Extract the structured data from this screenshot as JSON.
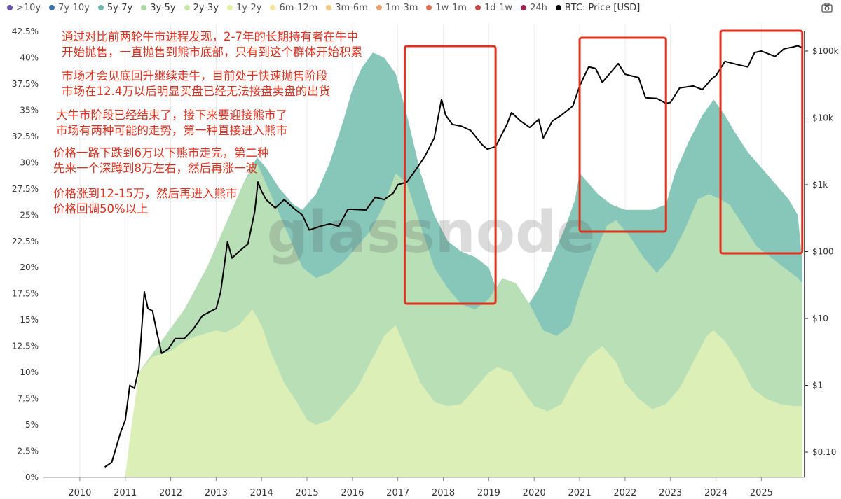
{
  "legend": [
    {
      "label": ">10y",
      "color": "#6c4fb3",
      "hidden": true
    },
    {
      "label": "7y-10y",
      "color": "#3b73a8",
      "hidden": true
    },
    {
      "label": "5y-7y",
      "color": "#6bb8b0",
      "hidden": false
    },
    {
      "label": "3y-5y",
      "color": "#a8d8a0",
      "hidden": false
    },
    {
      "label": "2y-3y",
      "color": "#c8e6a3",
      "hidden": false
    },
    {
      "label": "1y-2y",
      "color": "#e4efa0",
      "hidden": true
    },
    {
      "label": "6m-12m",
      "color": "#f3e59a",
      "hidden": true
    },
    {
      "label": "3m-6m",
      "color": "#f2c87a",
      "hidden": true
    },
    {
      "label": "1m-3m",
      "color": "#f0a066",
      "hidden": true
    },
    {
      "label": "1w-1m",
      "color": "#e46b50",
      "hidden": true
    },
    {
      "label": "1d-1w",
      "color": "#cf4545",
      "hidden": true
    },
    {
      "label": "24h",
      "color": "#a0234f",
      "hidden": true
    },
    {
      "label": "BTC: Price [USD]",
      "color": "#000000",
      "hidden": false
    }
  ],
  "icons": {
    "camera": "camera-icon"
  },
  "watermark": "glassnode",
  "annotations": [
    {
      "lines": [
        "通过对比前两轮牛市进程发现，2-7年的长期持有者在牛中",
        "开始抛售，一直抛售到熊市底部，只有到这个群体开始积累"
      ]
    },
    {
      "lines": [
        "市场才会见底回升继续走牛，目前处于快速抛售阶段",
        "市场在12.4万以后明显买盘已经无法接盘卖盘的出货"
      ]
    },
    {
      "lines": [
        "大牛市阶段已经结束了，接下来要迎接熊市了",
        "市场有两种可能的走势，第一种直接进入熊市"
      ]
    },
    {
      "lines": [
        "价格一路下跌到6万以下熊市走完，第二种",
        "先来一个深蹲到8万左右，然后再涨一波"
      ]
    },
    {
      "lines": [
        "价格涨到12-15万，然后再进入熊市",
        "价格回调50%以上"
      ]
    }
  ],
  "highlight_boxes": [
    {
      "from": 2017.15,
      "to": 2019.15
    },
    {
      "from": 2021.0,
      "to": 2022.9
    },
    {
      "from": 2024.1,
      "to": 2025.9
    }
  ],
  "chart_data": {
    "type": "area",
    "x_ticks": [
      "2010",
      "2011",
      "2012",
      "2013",
      "2014",
      "2015",
      "2016",
      "2017",
      "2018",
      "2019",
      "2020",
      "2021",
      "2022",
      "2023",
      "2024",
      "2025"
    ],
    "xlim": [
      2009.2,
      2025.95
    ],
    "y_left": {
      "ticks": [
        "0%",
        "2.5%",
        "5%",
        "7.5%",
        "10%",
        "12.5%",
        "15%",
        "17.5%",
        "20%",
        "22.5%",
        "25%",
        "27.5%",
        "30%",
        "32.5%",
        "35%",
        "37.5%",
        "40%",
        "42.5%"
      ],
      "ylim": [
        0,
        42.5
      ]
    },
    "y_right": {
      "scale": "log",
      "ticks": [
        "$0.10",
        "$1",
        "$10",
        "$100",
        "$1k",
        "$10k",
        "$100k"
      ],
      "ylim": [
        0.1,
        100000
      ]
    },
    "series": [
      {
        "name": "2y-3y",
        "type": "stacked-area",
        "axis": "left",
        "color": "#dcefb7",
        "points": [
          [
            2011.0,
            0
          ],
          [
            2011.08,
            3
          ],
          [
            2011.3,
            10
          ],
          [
            2011.6,
            11.5
          ],
          [
            2012.0,
            12
          ],
          [
            2012.3,
            13
          ],
          [
            2012.6,
            13.5
          ],
          [
            2013.0,
            14
          ],
          [
            2013.2,
            13.8
          ],
          [
            2013.5,
            14.5
          ],
          [
            2013.8,
            16
          ],
          [
            2014.0,
            14.5
          ],
          [
            2014.2,
            12
          ],
          [
            2014.5,
            9
          ],
          [
            2014.8,
            7
          ],
          [
            2015.0,
            5.5
          ],
          [
            2015.2,
            5
          ],
          [
            2015.5,
            5.5
          ],
          [
            2015.8,
            7
          ],
          [
            2016.1,
            8.5
          ],
          [
            2016.4,
            11
          ],
          [
            2016.7,
            13.5
          ],
          [
            2016.95,
            14.5
          ],
          [
            2017.2,
            12
          ],
          [
            2017.5,
            9
          ],
          [
            2017.8,
            7.2
          ],
          [
            2018.1,
            6.8
          ],
          [
            2018.4,
            7
          ],
          [
            2018.7,
            8.5
          ],
          [
            2019.0,
            10
          ],
          [
            2019.2,
            10.5
          ],
          [
            2019.5,
            10
          ],
          [
            2019.8,
            8
          ],
          [
            2020.0,
            6.8
          ],
          [
            2020.3,
            6.3
          ],
          [
            2020.6,
            7
          ],
          [
            2020.9,
            9.5
          ],
          [
            2021.2,
            11.5
          ],
          [
            2021.5,
            12.5
          ],
          [
            2021.8,
            11
          ],
          [
            2022.0,
            9
          ],
          [
            2022.3,
            7.5
          ],
          [
            2022.6,
            6.5
          ],
          [
            2022.9,
            7
          ],
          [
            2023.2,
            8.5
          ],
          [
            2023.5,
            11
          ],
          [
            2023.8,
            13.5
          ],
          [
            2023.95,
            14
          ],
          [
            2024.2,
            13
          ],
          [
            2024.5,
            11
          ],
          [
            2024.8,
            8.5
          ],
          [
            2025.1,
            7.5
          ],
          [
            2025.4,
            7
          ],
          [
            2025.7,
            6.8
          ],
          [
            2025.9,
            6.8
          ]
        ]
      },
      {
        "name": "3y-5y",
        "type": "stacked-area",
        "axis": "left",
        "color": "#b9dfb6",
        "points": [
          [
            2011.0,
            0
          ],
          [
            2011.1,
            3
          ],
          [
            2011.3,
            10
          ],
          [
            2011.8,
            13
          ],
          [
            2012.3,
            16
          ],
          [
            2012.8,
            20
          ],
          [
            2013.2,
            24
          ],
          [
            2013.6,
            28
          ],
          [
            2013.9,
            30
          ],
          [
            2014.1,
            28
          ],
          [
            2014.4,
            25
          ],
          [
            2014.7,
            22
          ],
          [
            2014.9,
            20
          ],
          [
            2015.2,
            19
          ],
          [
            2015.5,
            19.5
          ],
          [
            2015.8,
            20.5
          ],
          [
            2016.1,
            22
          ],
          [
            2016.4,
            23.5
          ],
          [
            2016.7,
            26
          ],
          [
            2016.95,
            29
          ],
          [
            2017.2,
            28
          ],
          [
            2017.5,
            24
          ],
          [
            2017.8,
            20
          ],
          [
            2018.1,
            18
          ],
          [
            2018.4,
            16.5
          ],
          [
            2018.7,
            16
          ],
          [
            2019.0,
            17
          ],
          [
            2019.3,
            19
          ],
          [
            2019.6,
            18.5
          ],
          [
            2019.9,
            16.5
          ],
          [
            2020.2,
            14
          ],
          [
            2020.5,
            13.5
          ],
          [
            2020.8,
            14.5
          ],
          [
            2021.0,
            17.5
          ],
          [
            2021.3,
            21
          ],
          [
            2021.6,
            24
          ],
          [
            2021.8,
            24.5
          ],
          [
            2022.1,
            23
          ],
          [
            2022.4,
            21
          ],
          [
            2022.7,
            19.5
          ],
          [
            2023.0,
            21
          ],
          [
            2023.3,
            23.5
          ],
          [
            2023.6,
            26.5
          ],
          [
            2023.85,
            27
          ],
          [
            2024.1,
            26.5
          ],
          [
            2024.3,
            26
          ],
          [
            2024.6,
            24
          ],
          [
            2024.9,
            22
          ],
          [
            2025.2,
            21
          ],
          [
            2025.5,
            20
          ],
          [
            2025.8,
            19
          ],
          [
            2025.9,
            18.5
          ]
        ]
      },
      {
        "name": "5y-7y",
        "type": "stacked-area",
        "axis": "left",
        "color": "#86c7b9",
        "points": [
          [
            2011.0,
            0
          ],
          [
            2011.1,
            3
          ],
          [
            2011.3,
            10
          ],
          [
            2011.8,
            13
          ],
          [
            2012.3,
            16
          ],
          [
            2012.8,
            20
          ],
          [
            2013.2,
            24
          ],
          [
            2013.6,
            28
          ],
          [
            2013.9,
            30.5
          ],
          [
            2014.1,
            29.5
          ],
          [
            2014.4,
            27.5
          ],
          [
            2014.7,
            26
          ],
          [
            2014.9,
            25.5
          ],
          [
            2015.2,
            27
          ],
          [
            2015.5,
            30
          ],
          [
            2015.8,
            34
          ],
          [
            2016.0,
            37
          ],
          [
            2016.2,
            39
          ],
          [
            2016.45,
            40.5
          ],
          [
            2016.7,
            40
          ],
          [
            2016.95,
            38.5
          ],
          [
            2017.2,
            34.5
          ],
          [
            2017.5,
            29
          ],
          [
            2017.8,
            25
          ],
          [
            2018.1,
            22.5
          ],
          [
            2018.4,
            21.5
          ],
          [
            2018.7,
            21
          ],
          [
            2019.0,
            20
          ],
          [
            2019.2,
            17.5
          ],
          [
            2019.5,
            16
          ],
          [
            2019.8,
            16
          ],
          [
            2020.1,
            18
          ],
          [
            2020.4,
            21
          ],
          [
            2020.7,
            24
          ],
          [
            2020.9,
            26.5
          ],
          [
            2021.0,
            29
          ],
          [
            2021.2,
            28
          ],
          [
            2021.4,
            27
          ],
          [
            2021.7,
            26
          ],
          [
            2022.0,
            25.5
          ],
          [
            2022.3,
            25.5
          ],
          [
            2022.6,
            25.5
          ],
          [
            2022.9,
            26
          ],
          [
            2023.1,
            29
          ],
          [
            2023.4,
            32
          ],
          [
            2023.7,
            34.5
          ],
          [
            2023.95,
            36
          ],
          [
            2024.2,
            34.5
          ],
          [
            2024.4,
            33
          ],
          [
            2024.7,
            31
          ],
          [
            2025.0,
            29.5
          ],
          [
            2025.3,
            28
          ],
          [
            2025.6,
            26.5
          ],
          [
            2025.8,
            25
          ],
          [
            2025.9,
            20.5
          ]
        ]
      },
      {
        "name": "BTC: Price [USD]",
        "type": "line",
        "axis": "right",
        "color": "#000000",
        "points": [
          [
            2010.55,
            0.06
          ],
          [
            2010.7,
            0.07
          ],
          [
            2010.9,
            0.2
          ],
          [
            2011.0,
            0.3
          ],
          [
            2011.1,
            1
          ],
          [
            2011.2,
            0.9
          ],
          [
            2011.3,
            1.8
          ],
          [
            2011.42,
            25
          ],
          [
            2011.5,
            14
          ],
          [
            2011.6,
            13
          ],
          [
            2011.7,
            6
          ],
          [
            2011.8,
            3
          ],
          [
            2011.95,
            3.5
          ],
          [
            2012.1,
            5
          ],
          [
            2012.3,
            5
          ],
          [
            2012.5,
            7
          ],
          [
            2012.7,
            11
          ],
          [
            2012.9,
            13
          ],
          [
            2013.0,
            14
          ],
          [
            2013.1,
            25
          ],
          [
            2013.25,
            140
          ],
          [
            2013.35,
            80
          ],
          [
            2013.5,
            100
          ],
          [
            2013.7,
            130
          ],
          [
            2013.85,
            400
          ],
          [
            2013.92,
            1100
          ],
          [
            2014.0,
            800
          ],
          [
            2014.1,
            600
          ],
          [
            2014.3,
            450
          ],
          [
            2014.5,
            600
          ],
          [
            2014.7,
            450
          ],
          [
            2014.9,
            350
          ],
          [
            2015.05,
            210
          ],
          [
            2015.3,
            240
          ],
          [
            2015.5,
            260
          ],
          [
            2015.7,
            240
          ],
          [
            2015.9,
            430
          ],
          [
            2016.0,
            430
          ],
          [
            2016.3,
            420
          ],
          [
            2016.5,
            650
          ],
          [
            2016.7,
            600
          ],
          [
            2016.9,
            750
          ],
          [
            2017.0,
            1000
          ],
          [
            2017.2,
            1100
          ],
          [
            2017.4,
            1700
          ],
          [
            2017.6,
            2700
          ],
          [
            2017.8,
            5000
          ],
          [
            2017.96,
            19000
          ],
          [
            2018.05,
            11000
          ],
          [
            2018.2,
            8000
          ],
          [
            2018.4,
            7500
          ],
          [
            2018.6,
            6500
          ],
          [
            2018.85,
            4000
          ],
          [
            2018.97,
            3400
          ],
          [
            2019.15,
            3700
          ],
          [
            2019.4,
            8000
          ],
          [
            2019.5,
            12000
          ],
          [
            2019.7,
            9000
          ],
          [
            2019.9,
            7200
          ],
          [
            2020.1,
            9500
          ],
          [
            2020.2,
            5000
          ],
          [
            2020.4,
            9000
          ],
          [
            2020.6,
            11000
          ],
          [
            2020.85,
            15000
          ],
          [
            2021.0,
            30000
          ],
          [
            2021.2,
            58000
          ],
          [
            2021.35,
            55000
          ],
          [
            2021.5,
            34000
          ],
          [
            2021.65,
            45000
          ],
          [
            2021.85,
            65000
          ],
          [
            2022.0,
            45000
          ],
          [
            2022.3,
            40000
          ],
          [
            2022.45,
            20000
          ],
          [
            2022.7,
            19500
          ],
          [
            2022.9,
            16500
          ],
          [
            2023.0,
            17000
          ],
          [
            2023.2,
            28000
          ],
          [
            2023.5,
            30000
          ],
          [
            2023.7,
            26500
          ],
          [
            2023.9,
            38000
          ],
          [
            2024.0,
            43000
          ],
          [
            2024.2,
            70000
          ],
          [
            2024.5,
            62000
          ],
          [
            2024.7,
            58000
          ],
          [
            2024.85,
            95000
          ],
          [
            2025.0,
            100000
          ],
          [
            2025.3,
            83000
          ],
          [
            2025.5,
            108000
          ],
          [
            2025.7,
            115000
          ],
          [
            2025.8,
            120000
          ],
          [
            2025.9,
            112000
          ]
        ]
      }
    ]
  }
}
